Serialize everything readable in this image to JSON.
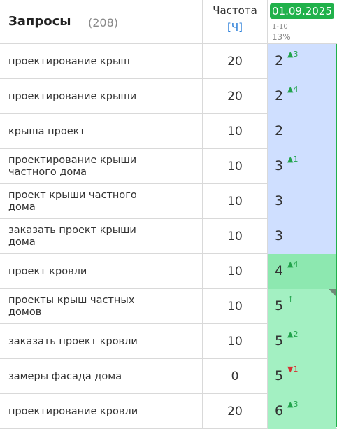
{
  "header": {
    "title": "Запросы",
    "count": "(208)",
    "frequency_label": "Частота",
    "frequency_mode": "[Ч]",
    "date": "01.09.2025",
    "range": "1-10",
    "percent": "13%"
  },
  "rows": [
    {
      "query": "проектирование крыш",
      "frequency": "20",
      "position": "2",
      "change": "▲3",
      "change_dir": "up",
      "zone": "top3"
    },
    {
      "query": "проектирование крыши",
      "frequency": "20",
      "position": "2",
      "change": "▲4",
      "change_dir": "up",
      "zone": "top3"
    },
    {
      "query": "крыша проект",
      "frequency": "10",
      "position": "2",
      "change": "",
      "change_dir": "none",
      "zone": "top3"
    },
    {
      "query": "проектирование крыши частного дома",
      "frequency": "10",
      "position": "3",
      "change": "▲1",
      "change_dir": "up",
      "zone": "top3"
    },
    {
      "query": "проект крыши частного дома",
      "frequency": "10",
      "position": "3",
      "change": "",
      "change_dir": "none",
      "zone": "top3"
    },
    {
      "query": "заказать проект крыши дома",
      "frequency": "10",
      "position": "3",
      "change": "",
      "change_dir": "none",
      "zone": "top3"
    },
    {
      "query": "проект кровли",
      "frequency": "10",
      "position": "4",
      "change": "▲4",
      "change_dir": "up",
      "zone": "top10b"
    },
    {
      "query": "проекты крыш частных домов",
      "frequency": "10",
      "position": "5",
      "change": "↑",
      "change_dir": "up",
      "zone": "top10",
      "marked": true
    },
    {
      "query": "заказать проект кровли",
      "frequency": "10",
      "position": "5",
      "change": "▲2",
      "change_dir": "up",
      "zone": "top10"
    },
    {
      "query": "замеры фасада дома",
      "frequency": "0",
      "position": "5",
      "change": "▼1",
      "change_dir": "down",
      "zone": "top10"
    },
    {
      "query": "проектирование кровли",
      "frequency": "20",
      "position": "6",
      "change": "▲3",
      "change_dir": "up",
      "zone": "top10"
    }
  ]
}
